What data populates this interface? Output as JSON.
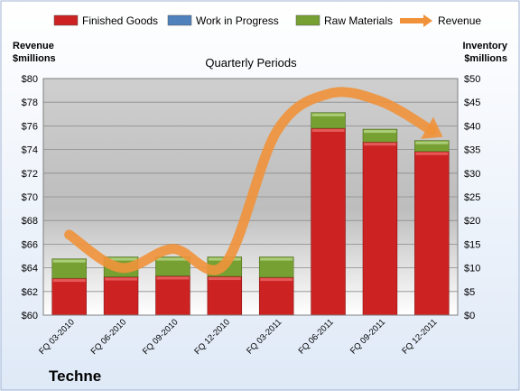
{
  "chart_data": {
    "type": "bar",
    "subtitle": "Quarterly Periods",
    "company": "Techne",
    "categories": [
      "FQ 03-2010",
      "FQ 06-2010",
      "FQ 09-2010",
      "FQ 12-2010",
      "FQ 03-2011",
      "FQ 06-2011",
      "FQ 09-2011",
      "FQ 12-2011"
    ],
    "left_axis": {
      "label_line1": "Revenue",
      "label_line2": "$millions",
      "min": 60,
      "max": 80,
      "step": 2,
      "tick_labels": [
        "$60",
        "$62",
        "$64",
        "$66",
        "$68",
        "$70",
        "$72",
        "$74",
        "$76",
        "$78",
        "$80"
      ]
    },
    "right_axis": {
      "label_line1": "Inventory",
      "label_line2": "$millions",
      "min": 0,
      "max": 50,
      "step": 5,
      "tick_labels": [
        "$0",
        "$5",
        "$10",
        "$15",
        "$20",
        "$25",
        "$30",
        "$35",
        "$40",
        "$45",
        "$50"
      ]
    },
    "series": [
      {
        "name": "Finished Goods",
        "axis": "right",
        "color": "#cc2222",
        "values": [
          7.8,
          8.1,
          8.3,
          8.2,
          8.0,
          39.5,
          36.6,
          34.6
        ]
      },
      {
        "name": "Work in Progress",
        "axis": "right",
        "color": "#4f81bd",
        "values": [
          0,
          0,
          0,
          0,
          0,
          0,
          0,
          0
        ]
      },
      {
        "name": "Raw Materials",
        "axis": "right",
        "color": "#77a033",
        "values": [
          4.1,
          4.2,
          4.0,
          4.1,
          4.3,
          3.3,
          2.7,
          2.3
        ]
      },
      {
        "name": "Revenue",
        "axis": "left",
        "type": "line",
        "color": "#f0923a",
        "values": [
          66.8,
          64.0,
          65.6,
          64.3,
          75.5,
          78.7,
          78.1,
          75.6
        ]
      }
    ],
    "legend_position": "top",
    "grid": true
  }
}
